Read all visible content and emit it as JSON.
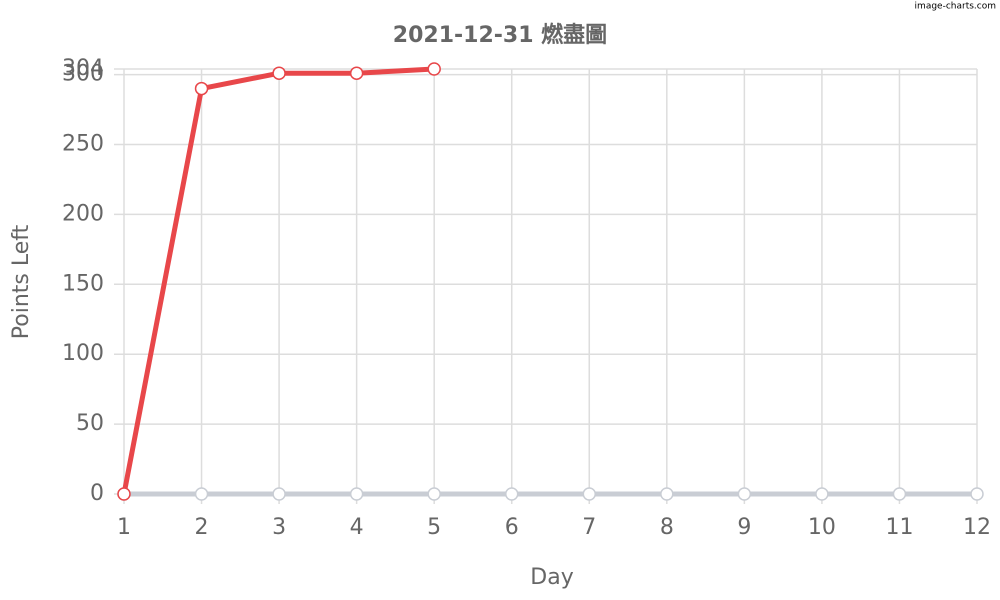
{
  "chart_data": {
    "type": "line",
    "title": "2021-12-31 燃盡圖",
    "watermark": "image-charts.com",
    "x_label": "Day",
    "y_label": "Points Left",
    "x": [
      1,
      2,
      3,
      4,
      5,
      6,
      7,
      8,
      9,
      10,
      11,
      12
    ],
    "series": [
      {
        "color": "#e8474a",
        "values": [
          0,
          290,
          301,
          301,
          304,
          null,
          null,
          null,
          null,
          null,
          null,
          null
        ]
      },
      {
        "color": "#c9cdd4",
        "values": [
          0,
          0,
          0,
          0,
          0,
          0,
          0,
          0,
          0,
          0,
          0,
          0
        ]
      }
    ],
    "xlim": [
      1,
      12
    ],
    "xticks": [
      1,
      2,
      3,
      4,
      5,
      6,
      7,
      8,
      9,
      10,
      11,
      12
    ],
    "ylim": [
      0,
      304
    ],
    "yticks": [
      0,
      50,
      100,
      150,
      200,
      250,
      300,
      304
    ],
    "grid": true
  }
}
